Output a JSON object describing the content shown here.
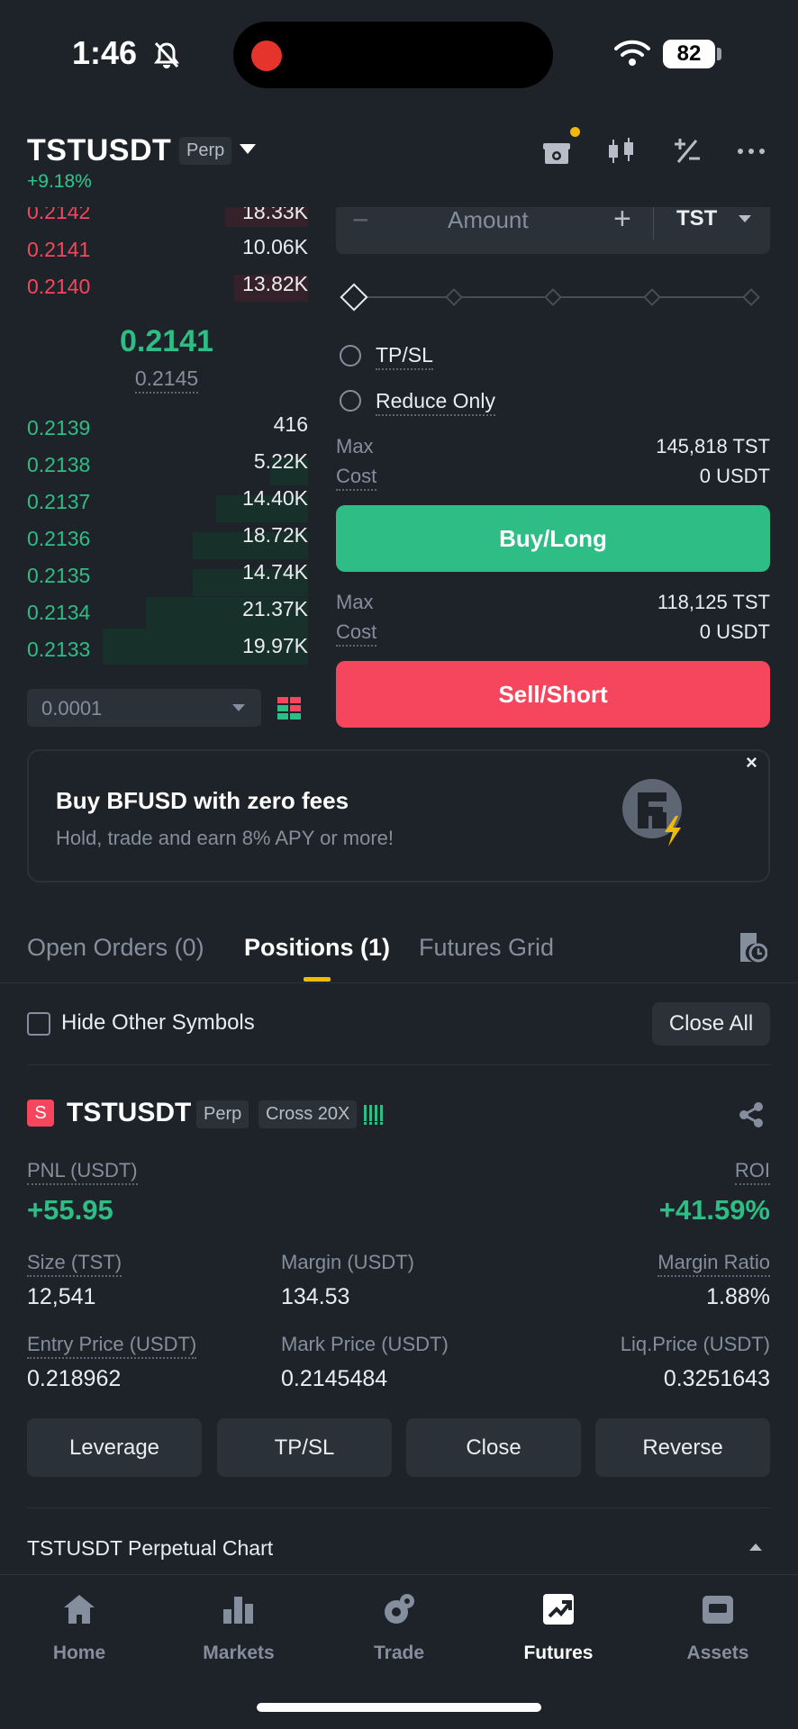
{
  "status_bar": {
    "time": "1:46",
    "battery": "82"
  },
  "header": {
    "symbol": "TSTUSDT",
    "contract_type": "Perp",
    "change": "+9.18%"
  },
  "order_book": {
    "asks": [
      {
        "price": "0.2142",
        "qty": "18.33K"
      },
      {
        "price": "0.2141",
        "qty": "10.06K"
      },
      {
        "price": "0.2140",
        "qty": "13.82K"
      }
    ],
    "last_price": "0.2141",
    "mark_price": "0.2145",
    "bids": [
      {
        "price": "0.2139",
        "qty": "416"
      },
      {
        "price": "0.2138",
        "qty": "5.22K"
      },
      {
        "price": "0.2137",
        "qty": "14.40K"
      },
      {
        "price": "0.2136",
        "qty": "18.72K"
      },
      {
        "price": "0.2135",
        "qty": "14.74K"
      },
      {
        "price": "0.2134",
        "qty": "21.37K"
      },
      {
        "price": "0.2133",
        "qty": "19.97K"
      }
    ],
    "tick_size": "0.0001"
  },
  "order_form": {
    "amount_placeholder": "Amount",
    "minus": "−",
    "plus": "+",
    "unit": "TST",
    "tpsl_label": "TP/SL",
    "reduce_only_label": "Reduce Only",
    "buy": {
      "max_label": "Max",
      "max_value": "145,818 TST",
      "cost_label": "Cost",
      "cost_value": "0 USDT",
      "button": "Buy/Long"
    },
    "sell": {
      "max_label": "Max",
      "max_value": "118,125 TST",
      "cost_label": "Cost",
      "cost_value": "0 USDT",
      "button": "Sell/Short"
    }
  },
  "promo": {
    "title": "Buy BFUSD with zero fees",
    "subtitle": "Hold, trade and earn 8% APY or more!",
    "close": "×"
  },
  "tabs": [
    {
      "label": "Open Orders (0)"
    },
    {
      "label": "Positions (1)"
    },
    {
      "label": "Futures Grid"
    }
  ],
  "positions_toolbar": {
    "hide_label": "Hide Other Symbols",
    "close_all": "Close All"
  },
  "position": {
    "side_badge": "S",
    "symbol": "TSTUSDT",
    "type": "Perp",
    "margin_mode": "Cross 20X",
    "pnl_label": "PNL (USDT)",
    "pnl_value": "+55.95",
    "roi_label": "ROI",
    "roi_value": "+41.59%",
    "size_label": "Size (TST)",
    "size_value": "12,541",
    "margin_label": "Margin (USDT)",
    "margin_value": "134.53",
    "margin_ratio_label": "Margin Ratio",
    "margin_ratio_value": "1.88%",
    "entry_label": "Entry Price (USDT)",
    "entry_value": "0.218962",
    "mark_label": "Mark Price (USDT)",
    "mark_value": "0.2145484",
    "liq_label": "Liq.Price (USDT)",
    "liq_value": "0.3251643",
    "actions": [
      "Leverage",
      "TP/SL",
      "Close",
      "Reverse"
    ]
  },
  "chart_bar": {
    "title": "TSTUSDT Perpetual  Chart"
  },
  "nav": [
    {
      "label": "Home",
      "icon": "home-icon"
    },
    {
      "label": "Markets",
      "icon": "markets-icon"
    },
    {
      "label": "Trade",
      "icon": "trade-icon"
    },
    {
      "label": "Futures",
      "icon": "futures-icon"
    },
    {
      "label": "Assets",
      "icon": "assets-icon"
    }
  ],
  "colors": {
    "buy": "#2ebd85",
    "sell": "#f6465d",
    "accent": "#f0b90b",
    "background": "#1e2329"
  }
}
